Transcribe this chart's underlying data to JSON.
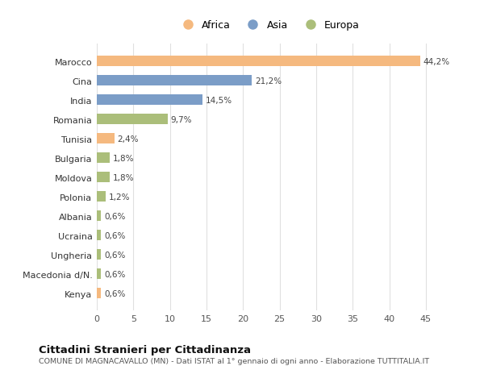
{
  "countries": [
    "Marocco",
    "Cina",
    "India",
    "Romania",
    "Tunisia",
    "Bulgaria",
    "Moldova",
    "Polonia",
    "Albania",
    "Ucraina",
    "Ungheria",
    "Macedonia d/N.",
    "Kenya"
  ],
  "values": [
    44.2,
    21.2,
    14.5,
    9.7,
    2.4,
    1.8,
    1.8,
    1.2,
    0.6,
    0.6,
    0.6,
    0.6,
    0.6
  ],
  "labels": [
    "44,2%",
    "21,2%",
    "14,5%",
    "9,7%",
    "2,4%",
    "1,8%",
    "1,8%",
    "1,2%",
    "0,6%",
    "0,6%",
    "0,6%",
    "0,6%",
    "0,6%"
  ],
  "continents": [
    "Africa",
    "Asia",
    "Asia",
    "Europa",
    "Africa",
    "Europa",
    "Europa",
    "Europa",
    "Europa",
    "Europa",
    "Europa",
    "Europa",
    "Africa"
  ],
  "colors": {
    "Africa": "#F5B97F",
    "Asia": "#7B9DC7",
    "Europa": "#ABBE7A"
  },
  "legend_labels": [
    "Africa",
    "Asia",
    "Europa"
  ],
  "legend_colors": [
    "#F5B97F",
    "#7B9DC7",
    "#ABBE7A"
  ],
  "xlim": [
    0,
    47
  ],
  "xticks": [
    0,
    5,
    10,
    15,
    20,
    25,
    30,
    35,
    40,
    45
  ],
  "title": "Cittadini Stranieri per Cittadinanza",
  "subtitle": "COMUNE DI MAGNACAVALLO (MN) - Dati ISTAT al 1° gennaio di ogni anno - Elaborazione TUTTITALIA.IT",
  "background_color": "#ffffff",
  "grid_color": "#e0e0e0",
  "bar_height": 0.55
}
